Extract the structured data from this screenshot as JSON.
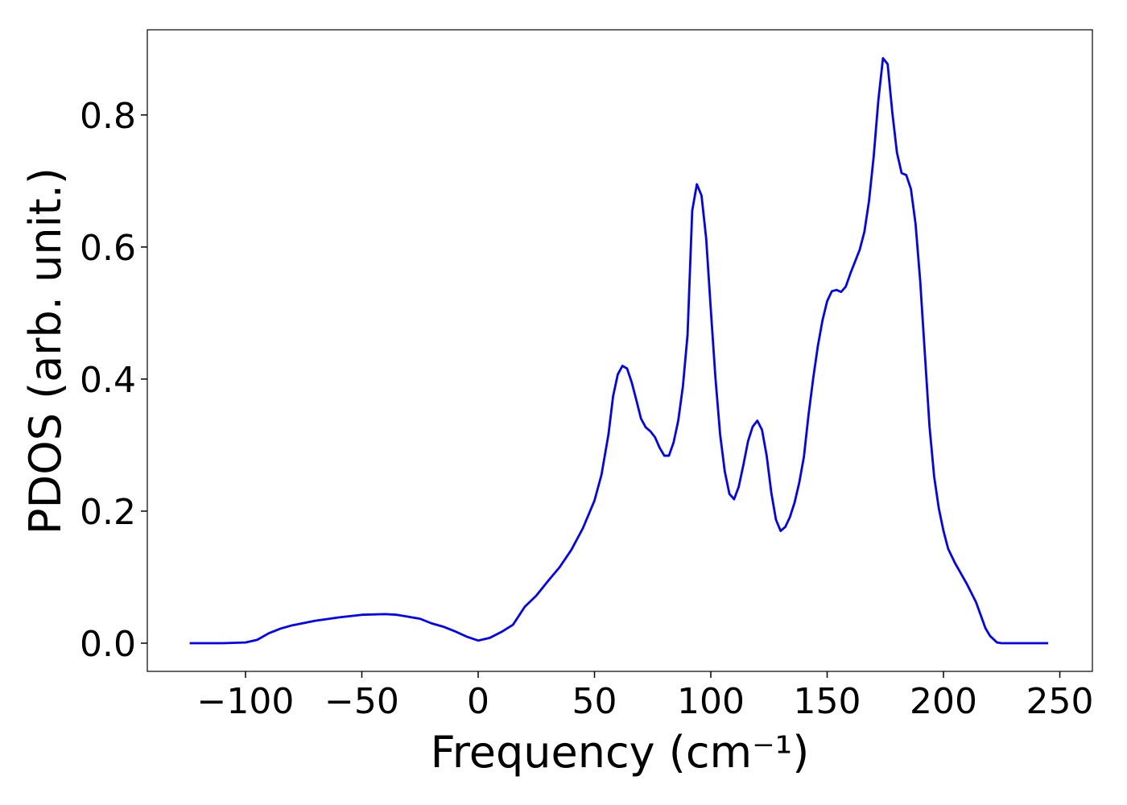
{
  "chart_data": {
    "type": "line",
    "xlabel": "Frequency (cm⁻¹)",
    "ylabel": "PDOS (arb. unit.)",
    "x": [
      -124,
      -110,
      -100,
      -95,
      -90,
      -85,
      -80,
      -70,
      -60,
      -50,
      -40,
      -35,
      -30,
      -25,
      -20,
      -15,
      -10,
      -5,
      0,
      5,
      10,
      15,
      20,
      25,
      30,
      35,
      40,
      45,
      50,
      53,
      56,
      58,
      60,
      62,
      64,
      66,
      68,
      70,
      72,
      74,
      76,
      78,
      80,
      82,
      84,
      86,
      88,
      90,
      92,
      94,
      96,
      98,
      100,
      102,
      104,
      106,
      108,
      110,
      112,
      114,
      116,
      118,
      120,
      122,
      124,
      126,
      128,
      130,
      132,
      134,
      136,
      138,
      140,
      142,
      144,
      146,
      148,
      150,
      152,
      154,
      156,
      158,
      160,
      162,
      164,
      166,
      168,
      170,
      172,
      174,
      176,
      178,
      180,
      182,
      184,
      186,
      188,
      190,
      192,
      194,
      196,
      198,
      200,
      202,
      205,
      210,
      214,
      218,
      220,
      223,
      225,
      245
    ],
    "series": [
      {
        "name": "PDOS",
        "color": "#0000ff",
        "values": [
          0,
          0,
          0.001,
          0.005,
          0.015,
          0.022,
          0.027,
          0.034,
          0.039,
          0.043,
          0.044,
          0.043,
          0.04,
          0.037,
          0.03,
          0.025,
          0.018,
          0.01,
          0.004,
          0.008,
          0.017,
          0.028,
          0.055,
          0.072,
          0.094,
          0.115,
          0.141,
          0.174,
          0.216,
          0.255,
          0.316,
          0.374,
          0.407,
          0.42,
          0.416,
          0.395,
          0.368,
          0.34,
          0.327,
          0.321,
          0.312,
          0.296,
          0.284,
          0.284,
          0.304,
          0.337,
          0.389,
          0.467,
          0.655,
          0.695,
          0.678,
          0.613,
          0.505,
          0.401,
          0.316,
          0.26,
          0.226,
          0.218,
          0.237,
          0.27,
          0.306,
          0.328,
          0.337,
          0.323,
          0.284,
          0.228,
          0.187,
          0.17,
          0.176,
          0.191,
          0.213,
          0.243,
          0.282,
          0.346,
          0.401,
          0.45,
          0.489,
          0.518,
          0.533,
          0.535,
          0.532,
          0.54,
          0.56,
          0.578,
          0.596,
          0.623,
          0.67,
          0.737,
          0.822,
          0.886,
          0.877,
          0.804,
          0.743,
          0.712,
          0.709,
          0.688,
          0.635,
          0.548,
          0.438,
          0.328,
          0.252,
          0.204,
          0.17,
          0.143,
          0.121,
          0.09,
          0.062,
          0.023,
          0.011,
          0.001,
          0,
          0
        ]
      }
    ],
    "xlim": [
      -142.2,
      264.0
    ],
    "ylim": [
      -0.0427,
      0.929
    ],
    "xticks": [
      {
        "value": -100,
        "label": "−100"
      },
      {
        "value": -50,
        "label": "−50"
      },
      0,
      50,
      100,
      150,
      200,
      250
    ],
    "yticks": [
      {
        "value": 0,
        "label": "0.0"
      },
      0.2,
      0.4,
      0.6,
      0.8
    ]
  }
}
